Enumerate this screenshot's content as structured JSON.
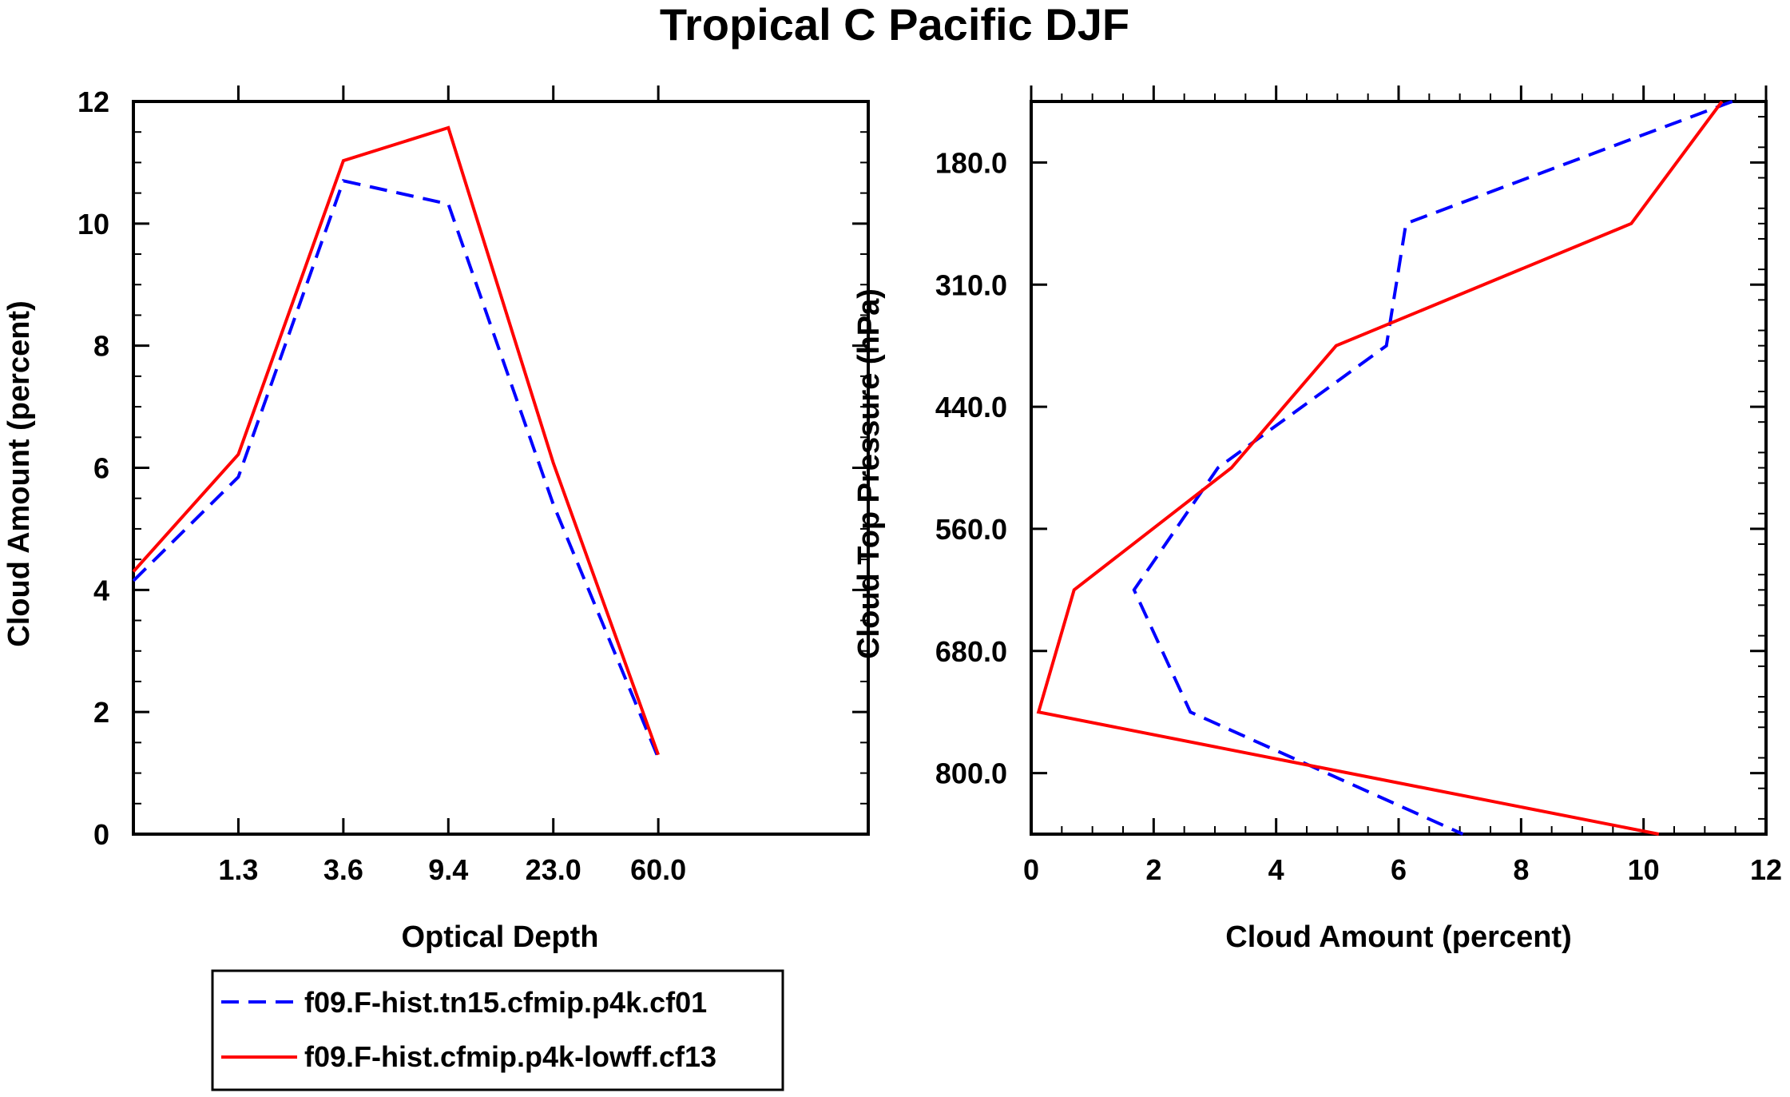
{
  "chart_data": [
    {
      "type": "line",
      "title": "Tropical C Pacific DJF",
      "xlabel": "Optical Depth",
      "ylabel": "Cloud Amount (percent)",
      "x_tick_labels": [
        "1.3",
        "3.6",
        "9.4",
        "23.0",
        "60.0"
      ],
      "ylim": [
        0,
        12
      ],
      "y_ticks": [
        0,
        2,
        4,
        6,
        8,
        10,
        12
      ],
      "x_bins": 7,
      "series": [
        {
          "name": "f09.F-hist.tn15.cfmip.p4k.cf01",
          "color": "#0000ff",
          "style": "dashed",
          "values": [
            4.15,
            5.85,
            10.7,
            10.32,
            5.4,
            1.25
          ]
        },
        {
          "name": "f09.F-hist.cfmip.p4k-lowff.cf13",
          "color": "#ff0000",
          "style": "solid",
          "values": [
            4.3,
            6.22,
            11.03,
            11.57,
            6.08,
            1.3
          ]
        }
      ]
    },
    {
      "type": "line",
      "orientation": "vertical-profile",
      "xlabel": "Cloud Amount (percent)",
      "ylabel": "Cloud Top Pressure (hPa)",
      "xlim": [
        0,
        12
      ],
      "x_ticks": [
        0,
        2,
        4,
        6,
        8,
        10,
        12
      ],
      "y_tick_labels": [
        "180.0",
        "310.0",
        "440.0",
        "560.0",
        "680.0",
        "800.0"
      ],
      "y_bins": 6,
      "series": [
        {
          "name": "f09.F-hist.tn15.cfmip.p4k.cf01",
          "color": "#0000ff",
          "style": "dashed",
          "values": [
            11.45,
            6.12,
            5.8,
            3.05,
            1.68,
            2.6,
            7.05
          ]
        },
        {
          "name": "f09.F-hist.cfmip.p4k-lowff.cf13",
          "color": "#ff0000",
          "style": "solid",
          "values": [
            11.28,
            9.8,
            4.98,
            3.27,
            0.7,
            0.12,
            10.25
          ]
        }
      ]
    }
  ],
  "legend": {
    "items": [
      {
        "label": "f09.F-hist.tn15.cfmip.p4k.cf01",
        "color": "#0000ff",
        "style": "dashed"
      },
      {
        "label": "f09.F-hist.cfmip.p4k-lowff.cf13",
        "color": "#ff0000",
        "style": "solid"
      }
    ]
  }
}
